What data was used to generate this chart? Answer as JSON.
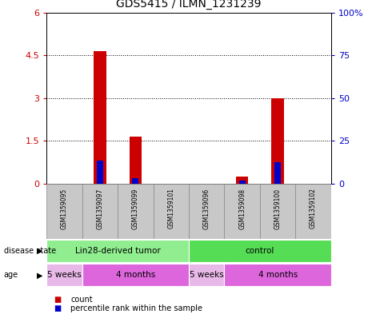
{
  "title": "GDS5415 / ILMN_1231239",
  "samples": [
    "GSM1359095",
    "GSM1359097",
    "GSM1359099",
    "GSM1359101",
    "GSM1359096",
    "GSM1359098",
    "GSM1359100",
    "GSM1359102"
  ],
  "count_values": [
    0,
    4.65,
    1.65,
    0,
    0,
    0.25,
    3.0,
    0
  ],
  "percentile_values": [
    0,
    0.8,
    0.2,
    0,
    0,
    0.12,
    0.75,
    0
  ],
  "ylim_left": [
    0,
    6
  ],
  "ylim_right": [
    0,
    100
  ],
  "yticks_left": [
    0,
    1.5,
    3.0,
    4.5,
    6.0
  ],
  "yticks_right": [
    0,
    25,
    50,
    75,
    100
  ],
  "ytick_labels_left": [
    "0",
    "1.5",
    "3",
    "4.5",
    "6"
  ],
  "ytick_labels_right": [
    "0",
    "25",
    "50",
    "75",
    "100%"
  ],
  "left_yaxis_color": "#cc0000",
  "right_yaxis_color": "#0000cc",
  "bar_color_red": "#cc0000",
  "bar_color_blue": "#0000cc",
  "bg_color": "#ffffff",
  "plot_bg": "#ffffff",
  "sample_box_color": "#c8c8c8",
  "disease_state_groups": [
    {
      "label": "Lin28-derived tumor",
      "start": 0,
      "end": 4,
      "color": "#90ee90"
    },
    {
      "label": "control",
      "start": 4,
      "end": 8,
      "color": "#55dd55"
    }
  ],
  "age_groups": [
    {
      "label": "5 weeks",
      "start": 0,
      "end": 1,
      "color": "#e8b8e8"
    },
    {
      "label": "4 months",
      "start": 1,
      "end": 4,
      "color": "#dd66dd"
    },
    {
      "label": "5 weeks",
      "start": 4,
      "end": 5,
      "color": "#e8b8e8"
    },
    {
      "label": "4 months",
      "start": 5,
      "end": 8,
      "color": "#dd66dd"
    }
  ],
  "bar_width": 0.35,
  "blue_bar_width": 0.18
}
